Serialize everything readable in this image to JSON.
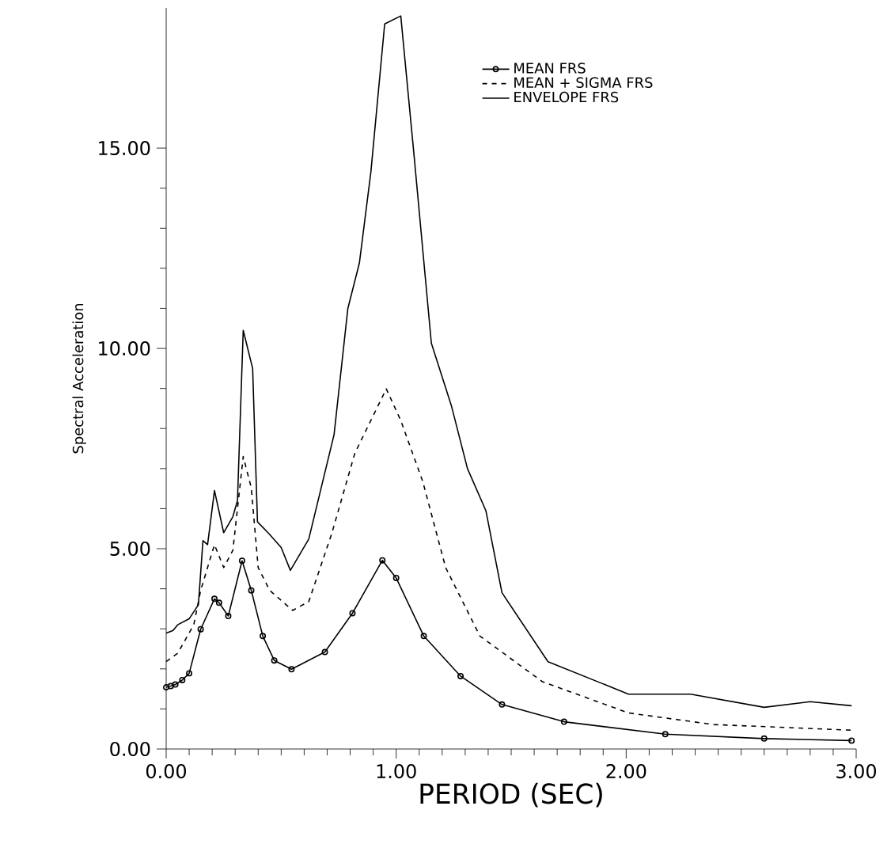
{
  "chart_data": {
    "type": "line",
    "xlabel": "PERIOD (SEC)",
    "ylabel": "Spectral Acceleration",
    "xlim": [
      0,
      3
    ],
    "ylim": [
      0,
      18.5
    ],
    "xticks": [
      {
        "value": 0,
        "label": "0.00"
      },
      {
        "value": 1,
        "label": "1.00"
      },
      {
        "value": 2,
        "label": "2.00"
      },
      {
        "value": 3,
        "label": "3.00"
      }
    ],
    "yticks": [
      {
        "value": 0,
        "label": "0.00"
      },
      {
        "value": 5,
        "label": "5.00"
      },
      {
        "value": 10,
        "label": "10.00"
      },
      {
        "value": 15,
        "label": "15.00"
      }
    ],
    "grid": false,
    "legend": "top right",
    "series": [
      {
        "name": "MEAN FRS",
        "color": "#000000",
        "line_style": "solid",
        "marker": "circle",
        "x": [
          0,
          0.02,
          0.04,
          0.07,
          0.1,
          0.15,
          0.21,
          0.23,
          0.27,
          0.33,
          0.37,
          0.42,
          0.47,
          0.545,
          0.69,
          0.81,
          0.94,
          1.0,
          1.12,
          1.28,
          1.46,
          1.73,
          2.17,
          2.6,
          2.98
        ],
        "values": [
          1.54,
          1.57,
          1.61,
          1.72,
          1.89,
          2.99,
          3.75,
          3.65,
          3.32,
          4.7,
          3.96,
          2.82,
          2.21,
          1.99,
          2.42,
          3.39,
          4.71,
          4.27,
          2.82,
          1.82,
          1.11,
          0.68,
          0.37,
          0.26,
          0.21
        ]
      },
      {
        "name": "MEAN + SIGMA FRS",
        "color": "#000000",
        "line_style": "dashed",
        "marker": "none",
        "x": [
          0,
          0.05,
          0.12,
          0.15,
          0.21,
          0.25,
          0.29,
          0.335,
          0.37,
          0.4,
          0.45,
          0.55,
          0.62,
          0.72,
          0.82,
          0.957,
          1.02,
          1.116,
          1.215,
          1.364,
          1.636,
          2.01,
          2.38,
          2.98
        ],
        "values": [
          2.18,
          2.39,
          3.1,
          3.96,
          5.1,
          4.53,
          4.96,
          7.3,
          6.52,
          4.53,
          3.96,
          3.46,
          3.68,
          5.38,
          7.38,
          8.99,
          8.2,
          6.67,
          4.53,
          2.82,
          1.68,
          0.9,
          0.61,
          0.47
        ]
      },
      {
        "name": "ENVELOPE FRS",
        "color": "#000000",
        "line_style": "solid",
        "marker": "none",
        "x": [
          0,
          0.03,
          0.05,
          0.1,
          0.14,
          0.16,
          0.18,
          0.21,
          0.25,
          0.29,
          0.31,
          0.335,
          0.376,
          0.397,
          0.446,
          0.5,
          0.54,
          0.62,
          0.73,
          0.79,
          0.84,
          0.89,
          0.95,
          1.02,
          1.078,
          1.153,
          1.24,
          1.31,
          1.39,
          1.46,
          1.66,
          2.01,
          2.28,
          2.6,
          2.8,
          2.98
        ],
        "values": [
          2.89,
          2.96,
          3.1,
          3.25,
          3.6,
          5.2,
          5.1,
          6.45,
          5.4,
          5.8,
          6.2,
          10.45,
          9.5,
          5.67,
          5.38,
          5.03,
          4.46,
          5.24,
          7.85,
          11.0,
          12.13,
          14.4,
          18.1,
          18.3,
          14.8,
          10.13,
          8.57,
          7.0,
          5.95,
          3.9,
          2.18,
          1.37,
          1.37,
          1.04,
          1.18,
          1.08
        ]
      }
    ]
  }
}
